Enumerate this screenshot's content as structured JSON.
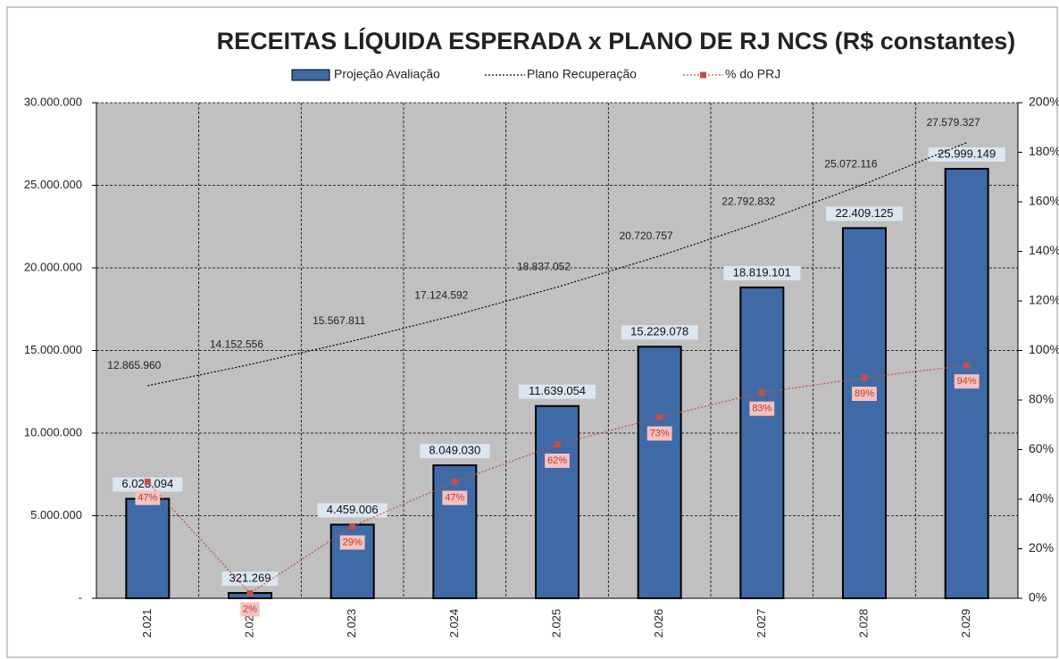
{
  "chart_data": {
    "type": "bar",
    "title": "RECEITAS LÍQUIDA ESPERADA x PLANO DE RJ NCS (R$ constantes)",
    "categories": [
      "2.021",
      "2.022",
      "2.023",
      "2.024",
      "2.025",
      "2.026",
      "2.027",
      "2.028",
      "2.029"
    ],
    "series": [
      {
        "name": "Projeção Avaliação",
        "type": "bar",
        "color": "#3f6aa6",
        "values": [
          6023094,
          321269,
          4459006,
          8049030,
          11639054,
          15229078,
          18819101,
          22409125,
          25999149
        ],
        "value_labels": [
          "6.023.094",
          "321.269",
          "4.459.006",
          "8.049.030",
          "11.639.054",
          "15.229.078",
          "18.819.101",
          "22.409.125",
          "25.999.149"
        ]
      },
      {
        "name": "Plano Recuperação",
        "type": "line",
        "color": "#000000",
        "values": [
          12865960,
          14152556,
          15567811,
          17124592,
          18837052,
          20720757,
          22792832,
          25072116,
          27579327
        ],
        "value_labels": [
          "12.865.960",
          "14.152.556",
          "15.567.811",
          "17.124.592",
          "18.837.052",
          "20.720.757",
          "22.792.832",
          "25.072.116",
          "27.579.327"
        ]
      },
      {
        "name": "% do PRJ",
        "type": "line",
        "axis": "y2",
        "color": "#c0504d",
        "marker": true,
        "values": [
          47,
          2,
          29,
          47,
          62,
          73,
          83,
          89,
          94
        ],
        "value_labels": [
          "47%",
          "2%",
          "29%",
          "47%",
          "62%",
          "73%",
          "83%",
          "89%",
          "94%"
        ]
      }
    ],
    "ylim": [
      0,
      30000000
    ],
    "yticks": [
      {
        "value": 0,
        "label": "-"
      },
      {
        "value": 5000000,
        "label": "5.000.000"
      },
      {
        "value": 10000000,
        "label": "10.000.000"
      },
      {
        "value": 15000000,
        "label": "15.000.000"
      },
      {
        "value": 20000000,
        "label": "20.000.000"
      },
      {
        "value": 25000000,
        "label": "25.000.000"
      },
      {
        "value": 30000000,
        "label": "30.000.000"
      }
    ],
    "y2lim": [
      0,
      200
    ],
    "y2ticks": [
      {
        "value": 0,
        "label": "0%"
      },
      {
        "value": 20,
        "label": "20%"
      },
      {
        "value": 40,
        "label": "40%"
      },
      {
        "value": 60,
        "label": "60%"
      },
      {
        "value": 80,
        "label": "80%"
      },
      {
        "value": 100,
        "label": "100%"
      },
      {
        "value": 120,
        "label": "120%"
      },
      {
        "value": 140,
        "label": "140%"
      },
      {
        "value": 160,
        "label": "160%"
      },
      {
        "value": 180,
        "label": "180%"
      },
      {
        "value": 200,
        "label": "200%"
      }
    ],
    "grid": true,
    "legend": "top"
  }
}
